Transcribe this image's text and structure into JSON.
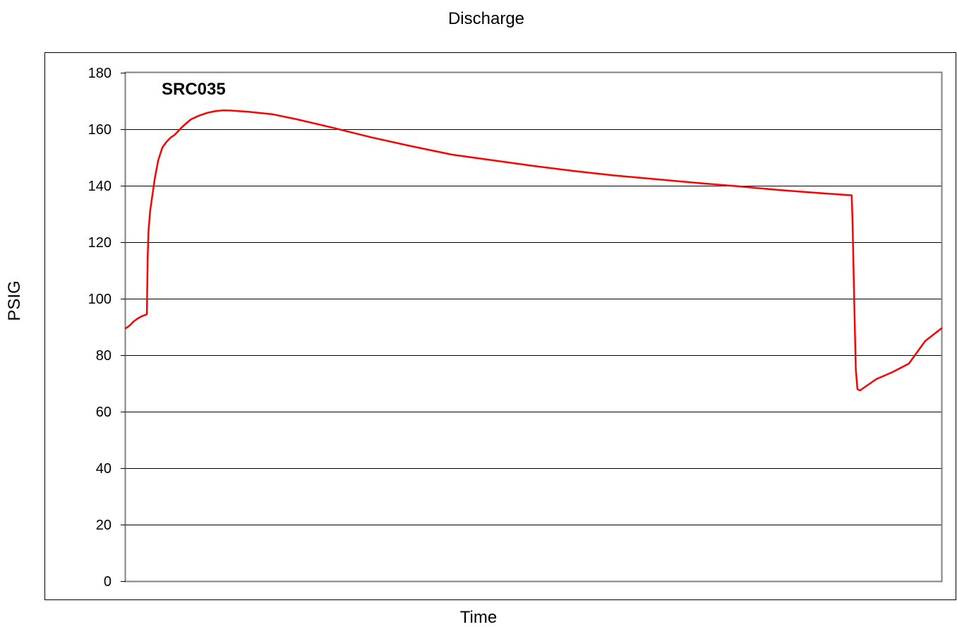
{
  "chart_data": {
    "type": "line",
    "title": "Discharge",
    "xlabel": "Time",
    "ylabel": "PSIG",
    "annotation": "SRC035",
    "ylim": [
      0,
      180
    ],
    "xlim": [
      0,
      100
    ],
    "yticks": [
      "0",
      "20",
      "40",
      "60",
      "80",
      "100",
      "120",
      "140",
      "160",
      "180"
    ],
    "grid": true,
    "legend": "none",
    "series_color": "#ff0000",
    "series": [
      {
        "x": [
          0,
          0.5,
          1,
          1.5,
          2,
          2.4,
          2.6,
          2.7,
          2.8,
          3,
          3.3,
          3.6,
          4,
          4.5,
          5,
          5.5,
          6,
          7,
          8,
          9,
          10,
          11,
          12,
          13,
          15,
          18,
          21,
          25,
          30,
          35,
          40,
          45,
          50,
          55,
          60,
          65,
          70,
          75,
          80,
          85,
          89,
          89.1,
          89.3,
          89.5,
          89.7,
          90,
          91,
          92,
          94,
          96,
          97,
          98,
          100
        ],
        "y": [
          89.5,
          90.5,
          92,
          93,
          93.8,
          94.2,
          94.5,
          114,
          124,
          131,
          137,
          143,
          149,
          153.5,
          155.5,
          157,
          158,
          161,
          163.5,
          164.8,
          165.8,
          166.4,
          166.7,
          166.6,
          166.2,
          165.3,
          163.5,
          160.8,
          157.2,
          154,
          151,
          149,
          147,
          145.2,
          143.6,
          142.3,
          141,
          139.8,
          138.5,
          137.4,
          136.6,
          127,
          100,
          75,
          68,
          67.5,
          69.5,
          71.5,
          74,
          77,
          81,
          85,
          89.5
        ]
      }
    ]
  }
}
